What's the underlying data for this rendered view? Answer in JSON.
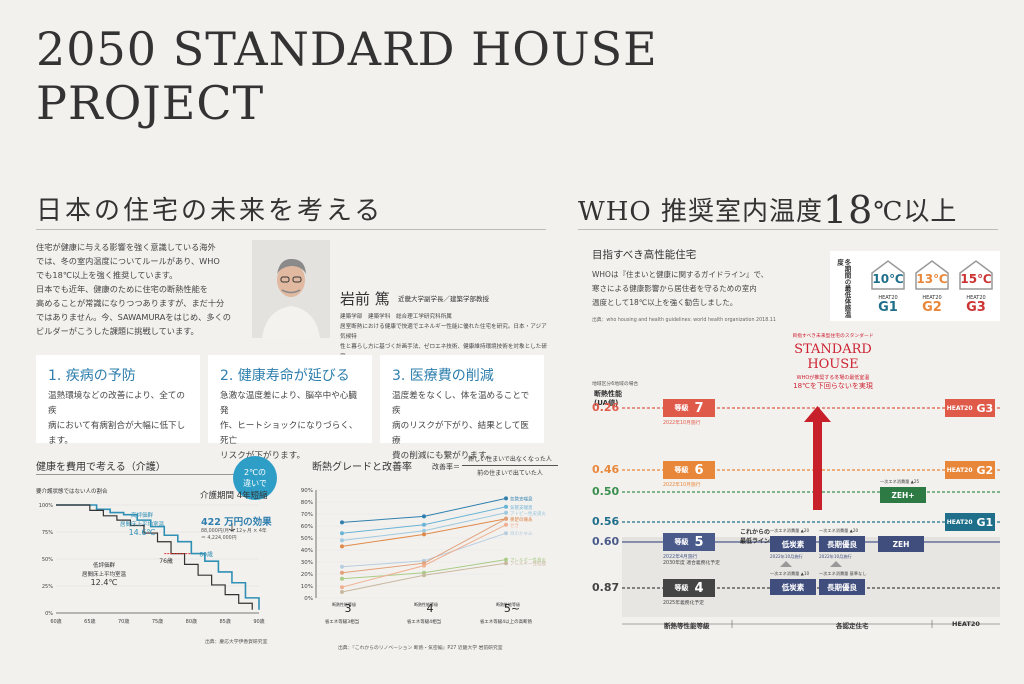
{
  "title": {
    "line1": "2050 STANDARD HOUSE",
    "line2": "PROJECT"
  },
  "left": {
    "heading": "日本の住宅の未来を考える",
    "intro": [
      "住宅が健康に与える影響を強く意識している海外",
      "では、冬の室内温度についてルールがあり、WHO",
      "でも18℃以上を強く推奨しています。",
      "日本でも近年、健康のために住宅の断熱性能を",
      "高めることが常識になりつつありますが、まだ十分",
      "ではありません。今、SAWAMURAをはじめ、多くの",
      "ビルダーがこうした課題に挑戦しています。"
    ],
    "person": {
      "name": "岩前 篤",
      "role": "近畿大学副学長／建築学部教授",
      "desc": [
        "建築学部　建築学科　総合理工学研究科所属",
        "居室断熱における健康で快適でエネルギー性能に優れた住宅を研究。日本・アジア気候特",
        "性と暮らし方に基づく計画手法、ゼロエネ技術、健康維持環境技術を対象とした研究。"
      ]
    },
    "features": [
      {
        "title": "1. 疾病の予防",
        "text": [
          "温熱環境などの改善により、全ての疾",
          "病において有病割合が大幅に低下し",
          "ます。"
        ]
      },
      {
        "title": "2. 健康寿命が延びる",
        "text": [
          "急激な温度差により、脳卒中や心臓発",
          "作、ヒートショックになりづらく、死亡",
          "リスクが下がります。"
        ]
      },
      {
        "title": "3. 医療費の削減",
        "text": [
          "温度差をなくし、体を温めることで疾",
          "病のリスクが下がり、結果として医療",
          "費の削減にも繋がります。"
        ]
      }
    ]
  },
  "chart1": {
    "title": "健康を費用で考える（介護）",
    "ylabel": "要介護状態ではない人の割合",
    "badge": [
      "2℃の",
      "違いで"
    ],
    "info": [
      "介護期間 4年短縮",
      "422 万円の効果",
      "88,000円/月 × 12ヶ月 × 4年",
      "＝ 4,224,000円"
    ],
    "label_high": [
      "高評価群",
      "居間床上平均室温",
      "14.6℃"
    ],
    "label_low": [
      "低評価群",
      "居間床上平均室温",
      "12.4℃"
    ],
    "age76": "76歳",
    "age80": "80歳",
    "source": "出典：慶応大学伊香賀研究室"
  },
  "chart2": {
    "title": "断熱グレードと改善率",
    "formula_left": "改善率＝",
    "formula_top": "新しい住まいで出なくなった人",
    "formula_bottom": "前の住まいで出ていた人",
    "x_labels": [
      {
        "top": "断熱性能等級",
        "num": "3",
        "sub": "省エネ等級3相当"
      },
      {
        "top": "断熱性能等級",
        "num": "4",
        "sub": "省エネ等級4相当"
      },
      {
        "top": "断熱性能等級",
        "num": "5~",
        "sub": "省エネ等級4以上の高断熱"
      }
    ],
    "source": "出典：『これからのリノベーション 断熱・気密編』P27 近畿大学 岩前研究室"
  },
  "chart_data": [
    {
      "type": "line",
      "title": "健康を費用で考える（介護）",
      "x": [
        60,
        65,
        70,
        75,
        80,
        85,
        90
      ],
      "x_tick_labels": [
        "60歳",
        "65歳",
        "70歳",
        "75歳",
        "80歳",
        "85歳",
        "90歳"
      ],
      "y_tick_labels": [
        "0%",
        "25%",
        "50%",
        "75%",
        "100%"
      ],
      "ylim": [
        0,
        100
      ],
      "series": [
        {
          "name": "高評価群",
          "points": [
            [
              60,
              100
            ],
            [
              64,
              100
            ],
            [
              66,
              96
            ],
            [
              68,
              93
            ],
            [
              70,
              91
            ],
            [
              72,
              86
            ],
            [
              74,
              80
            ],
            [
              76,
              72
            ],
            [
              78,
              66
            ],
            [
              80,
              55
            ],
            [
              82,
              48
            ],
            [
              84,
              38
            ],
            [
              86,
              28
            ],
            [
              88,
              14
            ],
            [
              90,
              3
            ]
          ]
        },
        {
          "name": "低評価群",
          "points": [
            [
              60,
              100
            ],
            [
              64,
              100
            ],
            [
              65,
              95
            ],
            [
              67,
              90
            ],
            [
              69,
              86
            ],
            [
              71,
              81
            ],
            [
              73,
              74
            ],
            [
              75,
              66
            ],
            [
              77,
              55
            ],
            [
              79,
              45
            ],
            [
              81,
              35
            ],
            [
              83,
              26
            ],
            [
              85,
              17
            ],
            [
              87,
              9
            ],
            [
              89,
              3
            ]
          ]
        }
      ]
    },
    {
      "type": "line",
      "title": "断熱グレードと改善率",
      "categories": [
        "3",
        "4",
        "5~"
      ],
      "y_tick_labels": [
        "0%",
        "10%",
        "20%",
        "30%",
        "40%",
        "50%",
        "60%",
        "70%",
        "80%",
        "90%"
      ],
      "ylim": [
        0,
        90
      ],
      "series": [
        {
          "name": "気管支喘息",
          "values": [
            63,
            68,
            83
          ]
        },
        {
          "name": "気管支喘息",
          "values": [
            54,
            61,
            76
          ]
        },
        {
          "name": "アトピー性皮膚炎",
          "values": [
            48,
            56,
            71
          ]
        },
        {
          "name": "手足の冷え",
          "values": [
            43,
            53,
            66
          ]
        },
        {
          "name": "目のかゆみ",
          "values": [
            26,
            31,
            54
          ]
        },
        {
          "name": "のどの痛み",
          "values": [
            21,
            29,
            66
          ]
        },
        {
          "name": "アレルギー性鼻炎",
          "values": [
            16,
            21,
            32
          ]
        },
        {
          "name": "せき",
          "values": [
            9,
            27,
            61
          ]
        },
        {
          "name": "アレルギー性結膜炎",
          "values": [
            5,
            19,
            29
          ]
        }
      ],
      "series_colors": [
        "#2f7fae",
        "#6ab3d6",
        "#9fc9e0",
        "#e08a4a",
        "#b7cde0",
        "#e2a07a",
        "#aacc88",
        "#f0b090",
        "#c8b8a0"
      ]
    }
  ],
  "right": {
    "heading_a": "WHO 推奨室内温度",
    "heading_b": "18",
    "heading_c": "℃以上",
    "subheading": "目指すべき高性能住宅",
    "text": [
      "WHOは『住まいと健康に関するガイドライン』で、",
      "寒さによる健康影響から居住者を守るための室内",
      "温度として18℃以上を強く勧告しました。"
    ],
    "source": "出典：who housing and health guidelines: world health organization 2018.11",
    "heat_label": "冬期間の最低体感温度",
    "heat20": [
      {
        "temp": "10",
        "grade": "G1",
        "color": "#1f6f8b"
      },
      {
        "temp": "13",
        "grade": "G2",
        "color": "#e8873a"
      },
      {
        "temp": "15",
        "grade": "G3",
        "color": "#cc3333"
      }
    ],
    "standard_house": {
      "small": "目指すべき未来型住宅のスタンダード",
      "title1": "STANDARD",
      "title2": "HOUSE",
      "sub": "WHOが推奨する冬場の最低室温",
      "promise": "18℃を下回らないを実現"
    },
    "ua_header": [
      "断熱性能",
      "(UA値)"
    ],
    "ua_note": "地域区分6地域の場合",
    "ua_values": [
      "0.26",
      "0.46",
      "0.50",
      "0.56",
      "0.60",
      "0.87"
    ],
    "ua_colors": [
      "#e05a4a",
      "#e8873a",
      "#3b8f4f",
      "#1f6f8b",
      "#4a5a8a",
      "#444444"
    ],
    "grades": [
      {
        "label": "等級",
        "num": "7",
        "year": "2022年10月施行",
        "color": "#e05a4a"
      },
      {
        "label": "等級",
        "num": "6",
        "year": "2022年10月施行",
        "color": "#e8873a"
      },
      {
        "label": "等級",
        "num": "5",
        "year": "2022年4月施行",
        "year2": "2030年度 適合義務化予定",
        "color": "#4a5a8a"
      },
      {
        "label": "等級",
        "num": "4",
        "year": "2025年義務化予定",
        "color": "#444"
      }
    ],
    "future_line": [
      "これからの",
      "最低ライン"
    ],
    "cert": [
      {
        "label": "低炭素",
        "note": "一次エネ消費量 ▲20"
      },
      {
        "label": "長期優良",
        "note": "一次エネ消費量 ▲20"
      },
      {
        "label": "ZEH",
        "note": ""
      },
      {
        "label": "ZEH+",
        "note": "一次エネ消費量 ▲25"
      },
      {
        "label": "低炭素",
        "note": "一次エネ消費量 ▲10"
      },
      {
        "label": "長期優良",
        "note": "一次エネ消費量 基準なし"
      }
    ],
    "cert_dates": [
      "2022年10月施行",
      "2022年10月施行"
    ],
    "heat_side": [
      {
        "label": "HEAT20",
        "grade": "G3"
      },
      {
        "label": "HEAT20",
        "grade": "G2"
      },
      {
        "label": "HEAT20",
        "grade": "G1"
      }
    ],
    "footer": [
      "断熱等性能等級",
      "各認定住宅",
      "HEAT20"
    ]
  }
}
